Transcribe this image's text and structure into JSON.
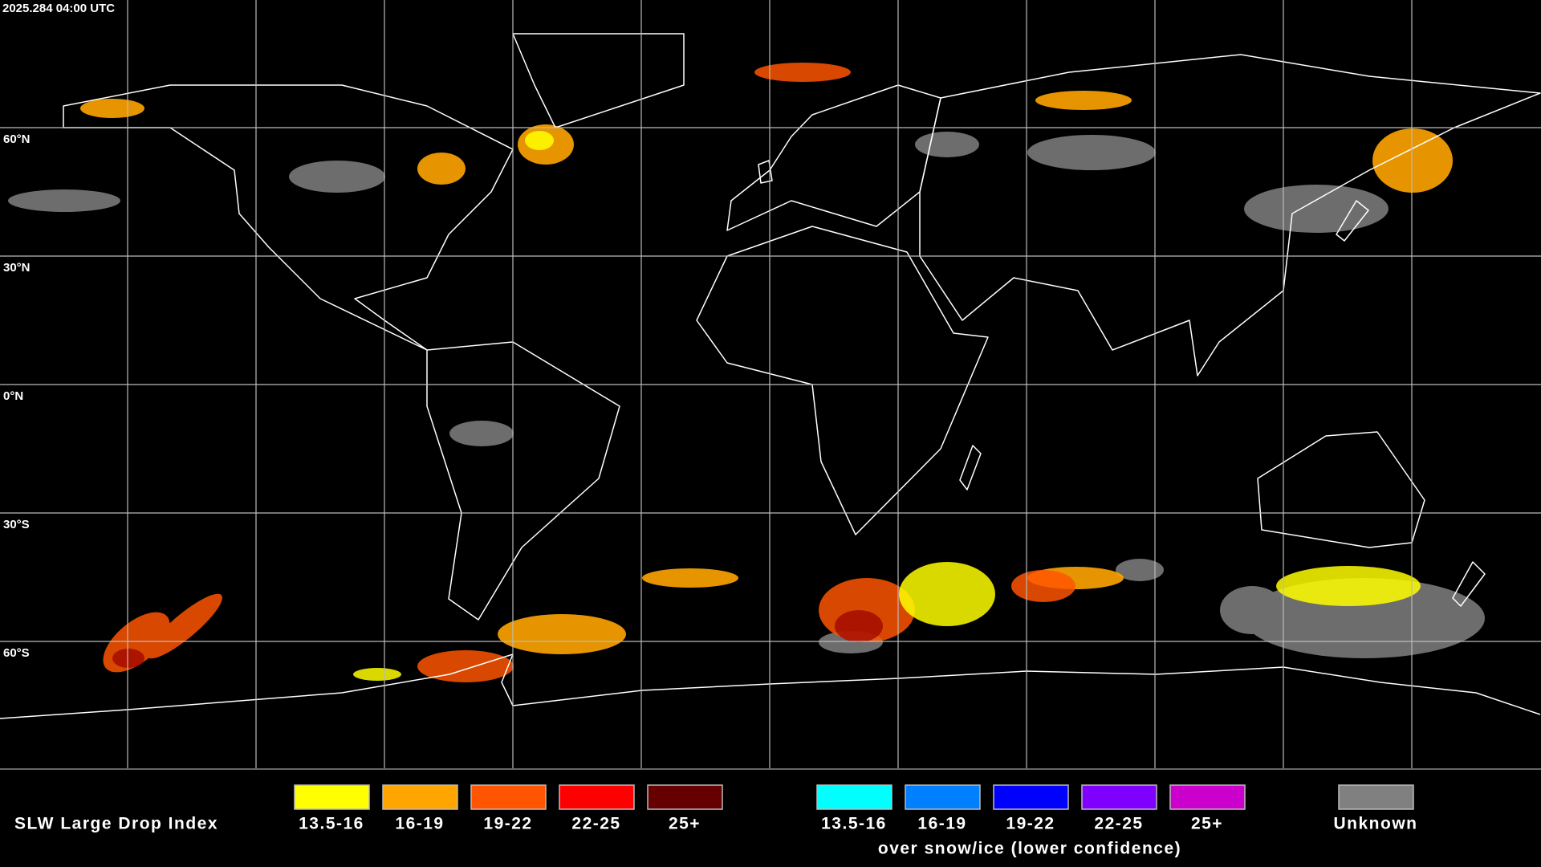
{
  "header": {
    "timestamp": "2025.284 04:00 UTC"
  },
  "map": {
    "latitude_labels": [
      "60°N",
      "30°N",
      "0°N",
      "30°S",
      "60°S"
    ]
  },
  "legend": {
    "title": "SLW Large Drop Index",
    "items": [
      {
        "label": "13.5-16",
        "color": "#ffff00"
      },
      {
        "label": "16-19",
        "color": "#ffa500"
      },
      {
        "label": "19-22",
        "color": "#ff5500"
      },
      {
        "label": "22-25",
        "color": "#ff0000"
      },
      {
        "label": "25+",
        "color": "#660000"
      }
    ],
    "snow_ice_items": [
      {
        "label": "13.5-16",
        "color": "#00ffff"
      },
      {
        "label": "16-19",
        "color": "#0080ff"
      },
      {
        "label": "19-22",
        "color": "#0000ff"
      },
      {
        "label": "22-25",
        "color": "#8000ff"
      },
      {
        "label": "25+",
        "color": "#cc00cc"
      }
    ],
    "snow_ice_caption": "over snow/ice (lower confidence)",
    "unknown": {
      "label": "Unknown",
      "color": "#808080"
    }
  }
}
